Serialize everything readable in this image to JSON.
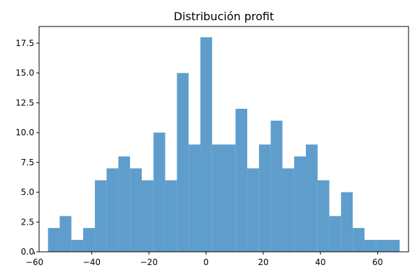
{
  "chart_data": {
    "type": "bar",
    "title": "Distribución profit",
    "xlabel": "",
    "ylabel": "",
    "bar_color": "#5f9ecc",
    "bin_edges": [
      -55.3,
      -51.2,
      -47.1,
      -43.0,
      -38.9,
      -34.8,
      -30.7,
      -26.6,
      -22.5,
      -18.4,
      -14.3,
      -10.2,
      -6.1,
      -2.0,
      2.1,
      6.2,
      10.3,
      14.4,
      18.5,
      22.6,
      26.7,
      30.8,
      34.9,
      39.0,
      43.1,
      47.2,
      51.3,
      55.4,
      59.5,
      63.6,
      67.7
    ],
    "values": [
      2,
      3,
      1,
      2,
      6,
      7,
      8,
      7,
      6,
      10,
      6,
      15,
      9,
      18,
      9,
      9,
      12,
      7,
      9,
      11,
      7,
      8,
      9,
      6,
      3,
      5,
      2,
      1,
      1,
      1
    ],
    "xlim": [
      -58.4,
      70.8
    ],
    "ylim": [
      0,
      18.9
    ],
    "x_ticks": [
      -60,
      -40,
      -20,
      0,
      20,
      40,
      60
    ],
    "x_tick_labels": [
      "−60",
      "−40",
      "−20",
      "0",
      "20",
      "40",
      "60"
    ],
    "y_ticks": [
      0,
      2.5,
      5,
      7.5,
      10,
      12.5,
      15,
      17.5
    ],
    "y_tick_labels": [
      "0.0",
      "2.5",
      "5.0",
      "7.5",
      "10.0",
      "12.5",
      "15.0",
      "17.5"
    ],
    "grid": false,
    "legend": false
  }
}
